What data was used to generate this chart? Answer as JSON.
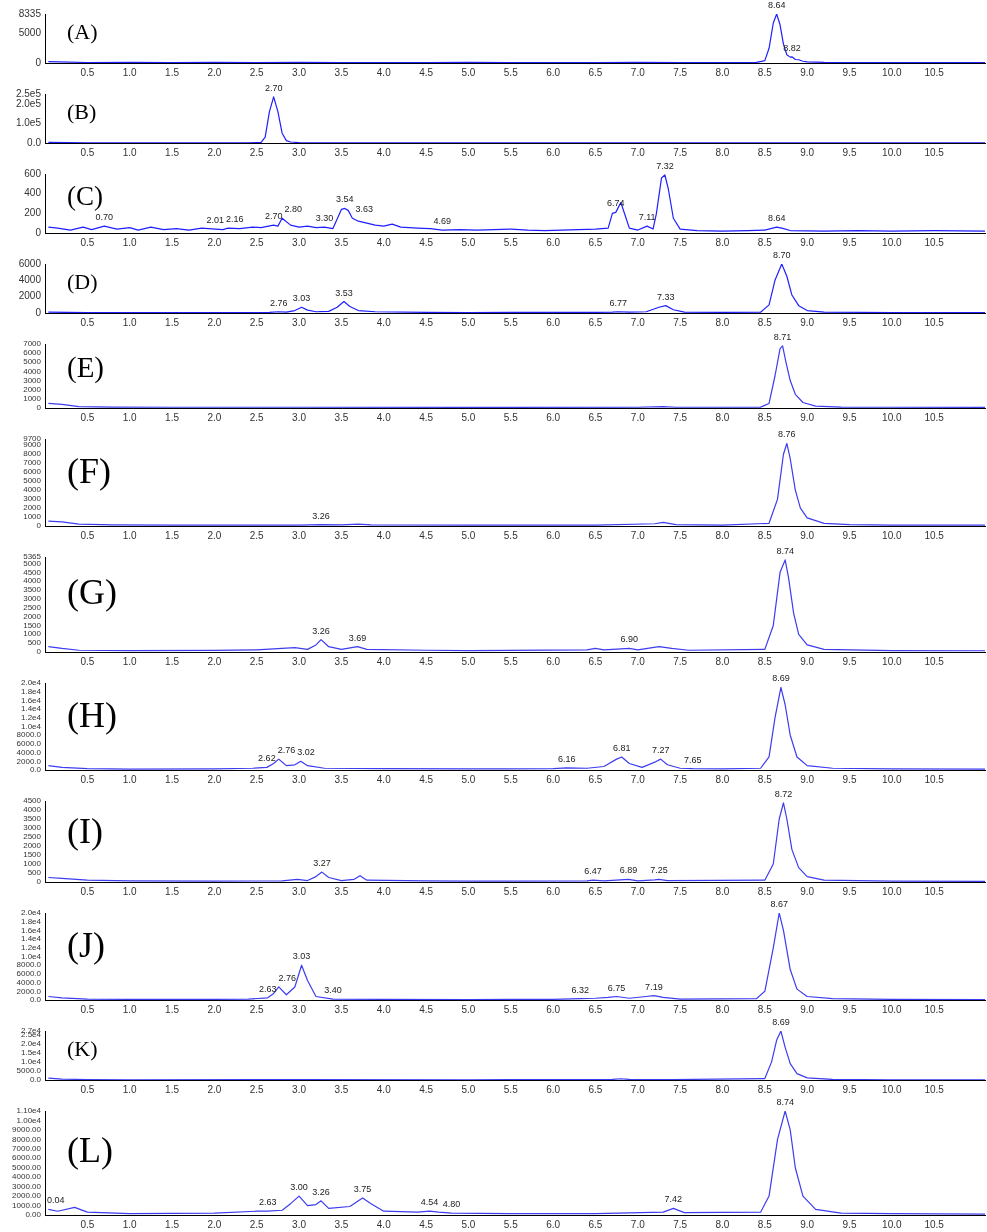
{
  "chart_data": [
    {
      "type": "line",
      "title": "(A)",
      "color": "#1f1fff",
      "xlim": [
        0,
        11.1
      ],
      "ylim": [
        0,
        8335
      ],
      "yticks": [
        0,
        5000,
        8335
      ],
      "xticks": [
        0.5,
        {
          "value": 1,
          "label": "1.0"
        },
        1.5,
        {
          "value": 2,
          "label": "2.0"
        },
        2.5,
        {
          "value": 3,
          "label": "3.0"
        },
        3.5,
        {
          "value": 4,
          "label": "4.0"
        },
        4.5,
        {
          "value": 5,
          "label": "5.0"
        },
        5.5,
        {
          "value": 6,
          "label": "6.0"
        },
        6.5,
        {
          "value": 7,
          "label": "7.0"
        },
        7.5,
        {
          "value": 8,
          "label": "8.0"
        },
        8.5,
        {
          "value": 9,
          "label": "9.0"
        },
        9.5,
        {
          "value": 10,
          "label": "10.0"
        },
        10.5
      ],
      "x": [
        0.04,
        0.5,
        1,
        1.5,
        2,
        2.5,
        3,
        3.5,
        4,
        4.5,
        5,
        5.5,
        6,
        6.5,
        7,
        7.5,
        8,
        8.4,
        8.5,
        8.55,
        8.6,
        8.64,
        8.68,
        8.72,
        8.76,
        8.8,
        8.82,
        8.86,
        8.9,
        8.95,
        9.0,
        9.2,
        9.5,
        10,
        10.5,
        11.1
      ],
      "values": [
        250,
        80,
        120,
        60,
        90,
        70,
        100,
        60,
        80,
        70,
        90,
        60,
        80,
        70,
        90,
        70,
        80,
        100,
        400,
        2500,
        6800,
        8335,
        6500,
        3200,
        1400,
        1000,
        1050,
        600,
        550,
        300,
        200,
        100,
        80,
        60,
        80,
        60
      ],
      "annotations": [
        {
          "text": "8.64",
          "x": 8.64,
          "y": 8335
        },
        {
          "text": "8.82",
          "x": 8.82,
          "y": 1050
        }
      ]
    },
    {
      "type": "line",
      "title": "(B)",
      "color": "#1f1fff",
      "xlim": [
        0,
        11.1
      ],
      "ylim": [
        0,
        250000
      ],
      "yticks": [
        {
          "value": 0,
          "label": "0.0"
        },
        {
          "value": 100000,
          "label": "1.0e5"
        },
        {
          "value": 200000,
          "label": "2.0e5"
        },
        {
          "value": 250000,
          "label": "2.5e5"
        }
      ],
      "xticks": [
        0.5,
        {
          "value": 1,
          "label": "1.0"
        },
        1.5,
        {
          "value": 2,
          "label": "2.0"
        },
        2.5,
        {
          "value": 3,
          "label": "3.0"
        },
        3.5,
        {
          "value": 4,
          "label": "4.0"
        },
        4.5,
        {
          "value": 5,
          "label": "5.0"
        },
        5.5,
        {
          "value": 6,
          "label": "6.0"
        },
        6.5,
        {
          "value": 7,
          "label": "7.0"
        },
        7.5,
        {
          "value": 8,
          "label": "8.0"
        },
        8.5,
        {
          "value": 9,
          "label": "9.0"
        },
        9.5,
        {
          "value": 10,
          "label": "10.0"
        },
        10.5
      ],
      "x": [
        0.04,
        0.5,
        1,
        1.5,
        2,
        2.4,
        2.55,
        2.6,
        2.65,
        2.7,
        2.75,
        2.8,
        2.85,
        2.9,
        3.0,
        3.1,
        3.5,
        4,
        5,
        6,
        7,
        8,
        9,
        10,
        11.1
      ],
      "values": [
        3000,
        1000,
        1000,
        1000,
        1000,
        1000,
        2000,
        30000,
        160000,
        235000,
        160000,
        50000,
        12000,
        5000,
        2000,
        1000,
        1000,
        1000,
        1000,
        1000,
        1000,
        1000,
        1000,
        1000,
        1000
      ],
      "annotations": [
        {
          "text": "2.70",
          "x": 2.7,
          "y": 235000
        }
      ]
    },
    {
      "type": "line",
      "title": "(C)",
      "color": "#1f1fff",
      "xlim": [
        0,
        11.1
      ],
      "ylim": [
        0,
        600
      ],
      "yticks": [
        0,
        200,
        400,
        600
      ],
      "xticks": [
        0.5,
        {
          "value": 1,
          "label": "1.0"
        },
        1.5,
        {
          "value": 2,
          "label": "2.0"
        },
        2.5,
        {
          "value": 3,
          "label": "3.0"
        },
        3.5,
        {
          "value": 4,
          "label": "4.0"
        },
        4.5,
        {
          "value": 5,
          "label": "5.0"
        },
        5.5,
        {
          "value": 6,
          "label": "6.0"
        },
        6.5,
        {
          "value": 7,
          "label": "7.0"
        },
        7.5,
        {
          "value": 8,
          "label": "8.0"
        },
        8.5,
        {
          "value": 9,
          "label": "9.0"
        },
        9.5,
        {
          "value": 10,
          "label": "10.0"
        },
        10.5
      ],
      "x": [
        0.04,
        0.15,
        0.3,
        0.45,
        0.55,
        0.7,
        0.85,
        1.0,
        1.1,
        1.25,
        1.4,
        1.55,
        1.7,
        1.85,
        2.01,
        2.1,
        2.16,
        2.3,
        2.45,
        2.55,
        2.7,
        2.75,
        2.8,
        2.9,
        3.0,
        3.1,
        3.2,
        3.3,
        3.4,
        3.5,
        3.54,
        3.58,
        3.63,
        3.7,
        3.8,
        3.9,
        4.0,
        4.1,
        4.2,
        4.4,
        4.55,
        4.69,
        4.9,
        5.1,
        5.3,
        5.5,
        5.7,
        5.9,
        6.1,
        6.3,
        6.5,
        6.65,
        6.7,
        6.74,
        6.8,
        6.85,
        6.9,
        7.0,
        7.11,
        7.18,
        7.22,
        7.28,
        7.32,
        7.36,
        7.42,
        7.5,
        7.7,
        8.0,
        8.3,
        8.5,
        8.64,
        8.7,
        8.8,
        9.2,
        9.6,
        10,
        10.5,
        11.1
      ],
      "values": [
        60,
        50,
        30,
        60,
        35,
        70,
        40,
        55,
        30,
        60,
        35,
        45,
        30,
        50,
        40,
        35,
        50,
        45,
        60,
        55,
        80,
        70,
        150,
        80,
        60,
        70,
        55,
        60,
        45,
        240,
        250,
        230,
        150,
        120,
        100,
        80,
        70,
        90,
        60,
        50,
        45,
        30,
        35,
        30,
        35,
        40,
        30,
        25,
        30,
        35,
        40,
        50,
        200,
        210,
        310,
        180,
        50,
        30,
        70,
        40,
        200,
        560,
        590,
        450,
        150,
        40,
        25,
        20,
        25,
        30,
        60,
        50,
        25,
        20,
        25,
        20,
        25,
        20
      ],
      "annotations": [
        {
          "text": "0.70",
          "x": 0.7,
          "y": 70
        },
        {
          "text": "2.01",
          "x": 2.01,
          "y": 40
        },
        {
          "text": "2.16",
          "x": 2.16,
          "y": 50
        },
        {
          "text": "2.70",
          "x": 2.7,
          "y": 80
        },
        {
          "text": "2.80",
          "x": 2.8,
          "y": 150
        },
        {
          "text": "3.30",
          "x": 3.3,
          "y": 60
        },
        {
          "text": "3.54",
          "x": 3.54,
          "y": 250
        },
        {
          "text": "3.63",
          "x": 3.63,
          "y": 150
        },
        {
          "text": "4.69",
          "x": 4.69,
          "y": 30
        },
        {
          "text": "6.74",
          "x": 6.74,
          "y": 210
        },
        {
          "text": "7.11",
          "x": 7.11,
          "y": 70
        },
        {
          "text": "7.32",
          "x": 7.32,
          "y": 590
        },
        {
          "text": "8.64",
          "x": 8.64,
          "y": 60
        }
      ]
    },
    {
      "type": "line",
      "title": "(D)",
      "color": "#1f1fff",
      "xlim": [
        0,
        11.1
      ],
      "ylim": [
        0,
        6000
      ],
      "yticks": [
        0,
        2000,
        4000,
        6000
      ],
      "xticks": [
        0.5,
        {
          "value": 1,
          "label": "1.0"
        },
        1.5,
        {
          "value": 2,
          "label": "2.0"
        },
        2.5,
        {
          "value": 3,
          "label": "3.0"
        },
        3.5,
        {
          "value": 4,
          "label": "4.0"
        },
        4.5,
        {
          "value": 5,
          "label": "5.0"
        },
        5.5,
        {
          "value": 6,
          "label": "6.0"
        },
        6.5,
        {
          "value": 7,
          "label": "7.0"
        },
        7.5,
        {
          "value": 8,
          "label": "8.0"
        },
        8.5,
        {
          "value": 9,
          "label": "9.0"
        },
        9.5,
        {
          "value": 10,
          "label": "10.0"
        },
        10.5
      ],
      "x": [
        0.04,
        0.5,
        1,
        1.5,
        2,
        2.5,
        2.65,
        2.76,
        2.85,
        2.95,
        3.03,
        3.1,
        3.2,
        3.35,
        3.45,
        3.53,
        3.6,
        3.7,
        3.9,
        4.5,
        5,
        6,
        6.5,
        6.7,
        6.77,
        6.9,
        7.1,
        7.25,
        7.33,
        7.42,
        7.55,
        8,
        8.45,
        8.55,
        8.62,
        8.7,
        8.76,
        8.82,
        8.9,
        9.0,
        9.2,
        10,
        11.1
      ],
      "values": [
        100,
        40,
        50,
        40,
        50,
        60,
        80,
        150,
        100,
        300,
        700,
        350,
        150,
        200,
        700,
        1400,
        800,
        300,
        150,
        80,
        60,
        70,
        80,
        100,
        150,
        100,
        150,
        700,
        900,
        400,
        100,
        80,
        100,
        1000,
        4000,
        6000,
        4500,
        2200,
        900,
        300,
        100,
        60,
        50
      ],
      "annotations": [
        {
          "text": "2.76",
          "x": 2.76,
          "y": 150
        },
        {
          "text": "3.03",
          "x": 3.03,
          "y": 700
        },
        {
          "text": "3.53",
          "x": 3.53,
          "y": 1400
        },
        {
          "text": "6.77",
          "x": 6.77,
          "y": 150
        },
        {
          "text": "7.33",
          "x": 7.33,
          "y": 900
        },
        {
          "text": "8.70",
          "x": 8.7,
          "y": 6000
        }
      ]
    },
    {
      "type": "line",
      "title": "(E)",
      "color": "#3c3cf0",
      "xlim": [
        0,
        11.1
      ],
      "ylim": [
        0,
        7000
      ],
      "yticks": [
        0,
        1000,
        2000,
        3000,
        4000,
        5000,
        6000,
        7000
      ],
      "xticks": [
        0.5,
        {
          "value": 1,
          "label": "1.0"
        },
        1.5,
        {
          "value": 2,
          "label": "2.0"
        },
        2.5,
        {
          "value": 3,
          "label": "3.0"
        },
        3.5,
        {
          "value": 4,
          "label": "4.0"
        },
        4.5,
        {
          "value": 5,
          "label": "5.0"
        },
        5.5,
        {
          "value": 6,
          "label": "6.0"
        },
        6.5,
        {
          "value": 7,
          "label": "7.0"
        },
        7.5,
        {
          "value": 8,
          "label": "8.0"
        },
        8.5,
        {
          "value": 9,
          "label": "9.0"
        },
        9.5,
        {
          "value": 10,
          "label": "10.0"
        },
        10.5
      ],
      "x": [
        0.04,
        0.2,
        0.4,
        0.8,
        1.5,
        3,
        5,
        7,
        7.3,
        7.45,
        8.45,
        8.55,
        8.62,
        8.68,
        8.71,
        8.75,
        8.8,
        8.86,
        8.95,
        9.1,
        9.4,
        10,
        11.1
      ],
      "values": [
        500,
        400,
        150,
        100,
        80,
        80,
        70,
        80,
        150,
        80,
        100,
        500,
        3500,
        6500,
        6800,
        5000,
        3000,
        1500,
        600,
        200,
        100,
        80,
        70
      ],
      "annotations": [
        {
          "text": "8.71",
          "x": 8.71,
          "y": 6800
        }
      ]
    },
    {
      "type": "line",
      "title": "(F)",
      "color": "#3c3cf0",
      "xlim": [
        0,
        11.1
      ],
      "ylim": [
        0,
        9700
      ],
      "yticks": [
        0,
        1000,
        2000,
        3000,
        4000,
        5000,
        6000,
        7000,
        8000,
        9000,
        9700
      ],
      "xticks": [
        0.5,
        {
          "value": 1,
          "label": "1.0"
        },
        1.5,
        {
          "value": 2,
          "label": "2.0"
        },
        2.5,
        {
          "value": 3,
          "label": "3.0"
        },
        3.5,
        {
          "value": 4,
          "label": "4.0"
        },
        4.5,
        {
          "value": 5,
          "label": "5.0"
        },
        5.5,
        {
          "value": 6,
          "label": "6.0"
        },
        6.5,
        {
          "value": 7,
          "label": "7.0"
        },
        7.5,
        {
          "value": 8,
          "label": "8.0"
        },
        8.5,
        {
          "value": 9,
          "label": "9.0"
        },
        9.5,
        {
          "value": 10,
          "label": "10.0"
        },
        10.5
      ],
      "x": [
        0.04,
        0.2,
        0.4,
        0.8,
        1.5,
        3,
        3.26,
        3.5,
        3.7,
        3.85,
        5,
        6.5,
        7.2,
        7.3,
        7.45,
        8,
        8.55,
        8.65,
        8.72,
        8.76,
        8.8,
        8.86,
        8.92,
        9.0,
        9.2,
        9.5,
        10,
        11.1
      ],
      "values": [
        550,
        450,
        200,
        120,
        90,
        100,
        150,
        120,
        200,
        120,
        90,
        90,
        250,
        400,
        150,
        100,
        300,
        3000,
        8000,
        9200,
        7500,
        4000,
        2000,
        900,
        300,
        150,
        100,
        90
      ],
      "annotations": [
        {
          "text": "3.26",
          "x": 3.26,
          "y": 150
        },
        {
          "text": "8.76",
          "x": 8.76,
          "y": 9200
        }
      ]
    },
    {
      "type": "line",
      "title": "(G)",
      "color": "#3c3cf0",
      "xlim": [
        0,
        11.1
      ],
      "ylim": [
        0,
        5365
      ],
      "yticks": [
        0,
        500,
        1000,
        1500,
        2000,
        2500,
        3000,
        3500,
        4000,
        4500,
        5000,
        5365
      ],
      "xticks": [
        0.5,
        {
          "value": 1,
          "label": "1.0"
        },
        1.5,
        {
          "value": 2,
          "label": "2.0"
        },
        2.5,
        {
          "value": 3,
          "label": "3.0"
        },
        3.5,
        {
          "value": 4,
          "label": "4.0"
        },
        4.5,
        {
          "value": 5,
          "label": "5.0"
        },
        5.5,
        {
          "value": 6,
          "label": "6.0"
        },
        6.5,
        {
          "value": 7,
          "label": "7.0"
        },
        7.5,
        {
          "value": 8,
          "label": "8.0"
        },
        8.5,
        {
          "value": 9,
          "label": "9.0"
        },
        9.5,
        {
          "value": 10,
          "label": "10.0"
        },
        10.5
      ],
      "x": [
        0.04,
        0.2,
        0.4,
        1,
        2,
        2.5,
        2.95,
        3.1,
        3.2,
        3.26,
        3.35,
        3.5,
        3.69,
        3.8,
        4.5,
        5,
        6.4,
        6.5,
        6.6,
        6.9,
        7.0,
        7.25,
        7.4,
        7.6,
        8.5,
        8.6,
        8.68,
        8.74,
        8.78,
        8.84,
        8.9,
        9.0,
        9.2,
        10,
        11.1
      ],
      "values": [
        300,
        200,
        100,
        80,
        90,
        120,
        250,
        150,
        400,
        700,
        300,
        150,
        300,
        150,
        100,
        80,
        120,
        200,
        120,
        200,
        120,
        300,
        200,
        100,
        150,
        1500,
        4500,
        5200,
        4200,
        2200,
        1000,
        400,
        150,
        80,
        70
      ],
      "annotations": [
        {
          "text": "3.26",
          "x": 3.26,
          "y": 700
        },
        {
          "text": "3.69",
          "x": 3.69,
          "y": 300
        },
        {
          "text": "6.90",
          "x": 6.9,
          "y": 200
        },
        {
          "text": "8.74",
          "x": 8.74,
          "y": 5200
        }
      ]
    },
    {
      "type": "line",
      "title": "(H)",
      "color": "#3c3cf0",
      "xlim": [
        0,
        11.1
      ],
      "ylim": [
        0,
        20000
      ],
      "yticks": [
        {
          "value": 0,
          "label": "0.0"
        },
        {
          "value": 2000,
          "label": "2000.0"
        },
        {
          "value": 4000,
          "label": "4000.0"
        },
        {
          "value": 6000,
          "label": "6000.0"
        },
        {
          "value": 8000,
          "label": "8000.0"
        },
        {
          "value": 10000,
          "label": "1.0e4"
        },
        {
          "value": 12000,
          "label": "1.2e4"
        },
        {
          "value": 14000,
          "label": "1.4e4"
        },
        {
          "value": 16000,
          "label": "1.6e4"
        },
        {
          "value": 18000,
          "label": "1.8e4"
        },
        {
          "value": 20000,
          "label": "2.0e4"
        }
      ],
      "xticks": [
        0.5,
        {
          "value": 1,
          "label": "1.0"
        },
        1.5,
        {
          "value": 2,
          "label": "2.0"
        },
        2.5,
        {
          "value": 3,
          "label": "3.0"
        },
        3.5,
        {
          "value": 4,
          "label": "4.0"
        },
        4.5,
        {
          "value": 5,
          "label": "5.0"
        },
        5.5,
        {
          "value": 6,
          "label": "6.0"
        },
        6.5,
        {
          "value": 7,
          "label": "7.0"
        },
        7.5,
        {
          "value": 8,
          "label": "8.0"
        },
        8.5,
        {
          "value": 9,
          "label": "9.0"
        },
        9.5,
        {
          "value": 10,
          "label": "10.0"
        },
        10.5
      ],
      "x": [
        0.04,
        0.2,
        0.5,
        1,
        2,
        2.45,
        2.62,
        2.7,
        2.76,
        2.85,
        2.95,
        3.02,
        3.1,
        3.3,
        4,
        5,
        6,
        6.16,
        6.4,
        6.6,
        6.75,
        6.81,
        6.9,
        7.05,
        7.2,
        7.27,
        7.35,
        7.5,
        7.65,
        8.0,
        8.45,
        8.55,
        8.62,
        8.69,
        8.74,
        8.8,
        8.88,
        9.0,
        9.3,
        10,
        11.1
      ],
      "values": [
        1000,
        600,
        300,
        200,
        250,
        400,
        600,
        1500,
        2500,
        1000,
        1200,
        2000,
        1000,
        400,
        300,
        250,
        300,
        500,
        400,
        800,
        2500,
        3000,
        1500,
        600,
        1800,
        2500,
        1200,
        400,
        300,
        250,
        400,
        3000,
        12000,
        19000,
        15000,
        8000,
        3000,
        1000,
        400,
        250,
        200
      ],
      "annotations": [
        {
          "text": "2.62",
          "x": 2.62,
          "y": 600
        },
        {
          "text": "2.76",
          "x": 2.76,
          "y": 2500
        },
        {
          "text": "3.02",
          "x": 3.02,
          "y": 2000
        },
        {
          "text": "6.16",
          "x": 6.16,
          "y": 500
        },
        {
          "text": "6.81",
          "x": 6.81,
          "y": 3000
        },
        {
          "text": "7.27",
          "x": 7.27,
          "y": 2500
        },
        {
          "text": "7.65",
          "x": 7.65,
          "y": 300
        },
        {
          "text": "8.69",
          "x": 8.69,
          "y": 19000
        }
      ]
    },
    {
      "type": "line",
      "title": "(I)",
      "color": "#3c3cf0",
      "xlim": [
        0,
        11.1
      ],
      "ylim": [
        0,
        4500
      ],
      "yticks": [
        0,
        500,
        1000,
        1500,
        2000,
        2500,
        3000,
        3500,
        4000,
        4500
      ],
      "xticks": [
        0.5,
        {
          "value": 1,
          "label": "1.0"
        },
        1.5,
        {
          "value": 2,
          "label": "2.0"
        },
        2.5,
        {
          "value": 3,
          "label": "3.0"
        },
        3.5,
        {
          "value": 4,
          "label": "4.0"
        },
        4.5,
        {
          "value": 5,
          "label": "5.0"
        },
        5.5,
        {
          "value": 6,
          "label": "6.0"
        },
        6.5,
        {
          "value": 7,
          "label": "7.0"
        },
        7.5,
        {
          "value": 8,
          "label": "8.0"
        },
        8.5,
        {
          "value": 9,
          "label": "9.0"
        },
        9.5,
        {
          "value": 10,
          "label": "10.0"
        },
        10.5
      ],
      "x": [
        0.04,
        0.2,
        0.5,
        1,
        2,
        2.8,
        2.98,
        3.1,
        3.2,
        3.27,
        3.35,
        3.5,
        3.65,
        3.72,
        3.8,
        4.5,
        5,
        6.4,
        6.47,
        6.6,
        6.89,
        7.0,
        7.2,
        7.25,
        7.35,
        8.5,
        8.6,
        8.67,
        8.72,
        8.76,
        8.82,
        8.9,
        9.0,
        9.2,
        10,
        11.1
      ],
      "values": [
        250,
        200,
        100,
        60,
        50,
        60,
        150,
        80,
        300,
        550,
        250,
        80,
        150,
        350,
        100,
        60,
        50,
        60,
        100,
        60,
        150,
        60,
        120,
        150,
        80,
        100,
        1000,
        3500,
        4400,
        3500,
        1800,
        800,
        300,
        100,
        50,
        40
      ],
      "annotations": [
        {
          "text": "3.27",
          "x": 3.27,
          "y": 550
        },
        {
          "text": "6.47",
          "x": 6.47,
          "y": 100
        },
        {
          "text": "6.89",
          "x": 6.89,
          "y": 150
        },
        {
          "text": "7.25",
          "x": 7.25,
          "y": 150
        },
        {
          "text": "8.72",
          "x": 8.72,
          "y": 4400
        }
      ]
    },
    {
      "type": "line",
      "title": "(J)",
      "color": "#3c3cf0",
      "xlim": [
        0,
        11.1
      ],
      "ylim": [
        0,
        20000
      ],
      "yticks": [
        {
          "value": 0,
          "label": "0.0"
        },
        {
          "value": 2000,
          "label": "2000.0"
        },
        {
          "value": 4000,
          "label": "4000.0"
        },
        {
          "value": 6000,
          "label": "6000.0"
        },
        {
          "value": 8000,
          "label": "8000.0"
        },
        {
          "value": 10000,
          "label": "1.0e4"
        },
        {
          "value": 12000,
          "label": "1.2e4"
        },
        {
          "value": 14000,
          "label": "1.4e4"
        },
        {
          "value": 16000,
          "label": "1.6e4"
        },
        {
          "value": 18000,
          "label": "1.8e4"
        },
        {
          "value": 20000,
          "label": "2.0e4"
        }
      ],
      "xticks": [
        0.5,
        {
          "value": 1,
          "label": "1.0"
        },
        1.5,
        {
          "value": 2,
          "label": "2.0"
        },
        2.5,
        {
          "value": 3,
          "label": "3.0"
        },
        3.5,
        {
          "value": 4,
          "label": "4.0"
        },
        4.5,
        {
          "value": 5,
          "label": "5.0"
        },
        5.5,
        {
          "value": 6,
          "label": "6.0"
        },
        6.5,
        {
          "value": 7,
          "label": "7.0"
        },
        7.5,
        {
          "value": 8,
          "label": "8.0"
        },
        8.5,
        {
          "value": 9,
          "label": "9.0"
        },
        9.5,
        {
          "value": 10,
          "label": "10.0"
        },
        10.5
      ],
      "x": [
        0.04,
        0.2,
        0.5,
        1,
        2,
        2.4,
        2.63,
        2.7,
        2.76,
        2.85,
        2.95,
        3.03,
        3.1,
        3.2,
        3.4,
        4,
        5,
        6,
        6.32,
        6.5,
        6.65,
        6.75,
        6.9,
        7.1,
        7.19,
        7.3,
        7.5,
        8.4,
        8.5,
        8.6,
        8.67,
        8.72,
        8.8,
        8.88,
        9.0,
        9.3,
        10,
        11.1
      ],
      "values": [
        800,
        500,
        200,
        150,
        150,
        200,
        500,
        1500,
        3000,
        1200,
        3000,
        8000,
        4500,
        800,
        200,
        150,
        120,
        150,
        300,
        400,
        600,
        800,
        400,
        800,
        1000,
        600,
        200,
        300,
        2000,
        12000,
        20000,
        16000,
        7000,
        2500,
        800,
        300,
        150,
        120
      ],
      "annotations": [
        {
          "text": "2.63",
          "x": 2.63,
          "y": 500
        },
        {
          "text": "2.76",
          "x": 2.76,
          "y": 3000
        },
        {
          "text": "3.03",
          "x": 3.03,
          "y": 8000
        },
        {
          "text": "3.40",
          "x": 3.4,
          "y": 200
        },
        {
          "text": "6.32",
          "x": 6.32,
          "y": 300
        },
        {
          "text": "6.75",
          "x": 6.75,
          "y": 800
        },
        {
          "text": "7.19",
          "x": 7.19,
          "y": 1000
        },
        {
          "text": "8.67",
          "x": 8.67,
          "y": 20000
        }
      ]
    },
    {
      "type": "line",
      "title": "(K)",
      "color": "#3c3cf0",
      "xlim": [
        0,
        11.1
      ],
      "ylim": [
        0,
        27000
      ],
      "yticks": [
        {
          "value": 0,
          "label": "0.0"
        },
        {
          "value": 5000,
          "label": "5000.0"
        },
        {
          "value": 10000,
          "label": "1.0e4"
        },
        {
          "value": 15000,
          "label": "1.5e4"
        },
        {
          "value": 20000,
          "label": "2.0e4"
        },
        {
          "value": 25000,
          "label": "2.5e4"
        },
        {
          "value": 27000,
          "label": "2.7e4"
        }
      ],
      "xticks": [
        0.5,
        {
          "value": 1,
          "label": "1.0"
        },
        1.5,
        {
          "value": 2,
          "label": "2.0"
        },
        2.5,
        {
          "value": 3,
          "label": "3.0"
        },
        3.5,
        {
          "value": 4,
          "label": "4.0"
        },
        4.5,
        {
          "value": 5,
          "label": "5.0"
        },
        5.5,
        {
          "value": 6,
          "label": "6.0"
        },
        6.5,
        {
          "value": 7,
          "label": "7.0"
        },
        7.5,
        {
          "value": 8,
          "label": "8.0"
        },
        8.5,
        {
          "value": 9,
          "label": "9.0"
        },
        9.5,
        {
          "value": 10,
          "label": "10.0"
        },
        10.5
      ],
      "x": [
        0.04,
        0.2,
        0.5,
        1,
        3,
        5,
        6.7,
        6.8,
        6.9,
        7.4,
        8.5,
        8.58,
        8.64,
        8.69,
        8.74,
        8.8,
        8.88,
        9.0,
        9.3,
        10,
        11.1
      ],
      "values": [
        1000,
        500,
        200,
        150,
        200,
        150,
        300,
        700,
        300,
        200,
        800,
        10000,
        22000,
        27000,
        18000,
        9000,
        3500,
        1200,
        300,
        150,
        100
      ],
      "annotations": [
        {
          "text": "8.69",
          "x": 8.69,
          "y": 27000
        }
      ]
    },
    {
      "type": "line",
      "title": "(L)",
      "color": "#3c3cf0",
      "xlim": [
        0,
        11.1
      ],
      "ylim": [
        0,
        11000
      ],
      "yticks": [
        {
          "value": 0,
          "label": "0.00"
        },
        {
          "value": 1000,
          "label": "1000.00"
        },
        {
          "value": 2000,
          "label": "2000.00"
        },
        {
          "value": 3000,
          "label": "3000.00"
        },
        {
          "value": 4000,
          "label": "4000.00"
        },
        {
          "value": 5000,
          "label": "5000.00"
        },
        {
          "value": 6000,
          "label": "6000.00"
        },
        {
          "value": 7000,
          "label": "7000.00"
        },
        {
          "value": 8000,
          "label": "8000.00"
        },
        {
          "value": 9000,
          "label": "9000.00"
        },
        {
          "value": 10000,
          "label": "1.00e4"
        },
        {
          "value": 11000,
          "label": "1.10e4"
        }
      ],
      "xticks": [
        0.5,
        {
          "value": 1,
          "label": "1.0"
        },
        1.5,
        {
          "value": 2,
          "label": "2.0"
        },
        2.5,
        {
          "value": 3,
          "label": "3.0"
        },
        3.5,
        {
          "value": 4,
          "label": "4.0"
        },
        4.5,
        {
          "value": 5,
          "label": "5.0"
        },
        5.5,
        {
          "value": 6,
          "label": "6.0"
        },
        6.5,
        {
          "value": 7,
          "label": "7.0"
        },
        7.5,
        {
          "value": 8,
          "label": "8.0"
        },
        8.5,
        {
          "value": 9,
          "label": "9.0"
        },
        9.5,
        {
          "value": 10,
          "label": "10.0"
        },
        10.5
      ],
      "x": [
        0.04,
        0.15,
        0.35,
        0.5,
        1,
        2,
        2.5,
        2.63,
        2.8,
        2.9,
        3.0,
        3.1,
        3.2,
        3.26,
        3.35,
        3.6,
        3.75,
        3.85,
        4.0,
        4.4,
        4.54,
        4.65,
        4.8,
        5.5,
        6.5,
        7.3,
        7.42,
        7.55,
        8.45,
        8.55,
        8.65,
        8.74,
        8.8,
        8.86,
        8.95,
        9.1,
        9.4,
        10,
        11.1
      ],
      "values": [
        600,
        400,
        800,
        300,
        150,
        200,
        400,
        400,
        500,
        1200,
        2000,
        1000,
        1100,
        1500,
        700,
        900,
        1800,
        1200,
        400,
        300,
        400,
        300,
        200,
        150,
        150,
        300,
        700,
        250,
        300,
        2000,
        8000,
        11000,
        9000,
        5000,
        2000,
        600,
        200,
        150,
        100
      ],
      "annotations": [
        {
          "text": "0.04",
          "x": 0.04,
          "y": 600
        },
        {
          "text": "2.63",
          "x": 2.63,
          "y": 400
        },
        {
          "text": "3.00",
          "x": 3.0,
          "y": 2000
        },
        {
          "text": "3.26",
          "x": 3.26,
          "y": 1500
        },
        {
          "text": "3.75",
          "x": 3.75,
          "y": 1800
        },
        {
          "text": "4.54",
          "x": 4.54,
          "y": 400
        },
        {
          "text": "4.80",
          "x": 4.8,
          "y": 200
        },
        {
          "text": "7.42",
          "x": 7.42,
          "y": 700
        },
        {
          "text": "8.74",
          "x": 8.74,
          "y": 11000
        }
      ]
    }
  ]
}
